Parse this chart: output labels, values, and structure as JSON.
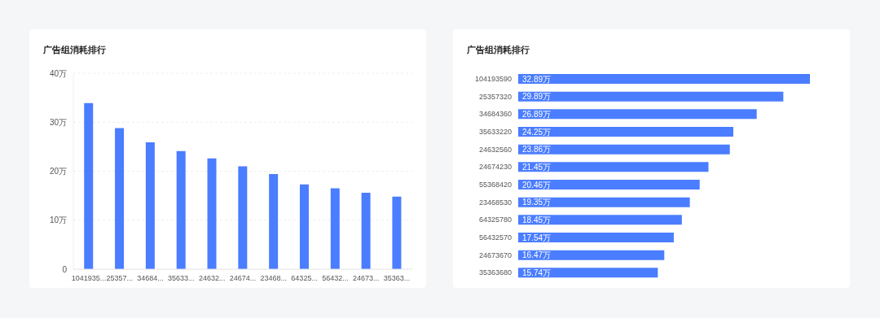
{
  "chart_data": [
    {
      "type": "bar",
      "title": "广告组消耗排行",
      "categories": [
        "1041935...",
        "25357...",
        "34684...",
        "35633...",
        "24632...",
        "24674...",
        "23468...",
        "64325...",
        "56432...",
        "24673...",
        "35363..."
      ],
      "values": [
        33.9,
        28.8,
        25.9,
        24.1,
        22.6,
        21.0,
        19.4,
        17.3,
        16.5,
        15.6,
        14.8
      ],
      "color": "#4a7dff",
      "ylim": [
        0,
        40
      ],
      "yticks": [
        0,
        {
          "value": 10,
          "label": "10万"
        },
        {
          "value": 20,
          "label": "20万"
        },
        {
          "value": 30,
          "label": "30万"
        },
        {
          "value": 40,
          "label": "40万"
        }
      ],
      "grid": "y"
    },
    {
      "type": "bar",
      "orientation": "horizontal",
      "title": "广告组消耗排行",
      "categories": [
        "104193590",
        "25357320",
        "34684360",
        "35633220",
        "24632560",
        "24674230",
        "55368420",
        "23468530",
        "64325780",
        "56432570",
        "24673670",
        "35363680"
      ],
      "values": [
        32.89,
        29.89,
        26.89,
        24.25,
        23.86,
        21.45,
        20.46,
        19.35,
        18.45,
        17.54,
        16.47,
        15.74
      ],
      "value_labels": [
        "32.89万",
        "29.89万",
        "26.89万",
        "24.25万",
        "23.86万",
        "21.45万",
        "20.46万",
        "19.35万",
        "18.45万",
        "17.54万",
        "16.47万",
        "15.74万"
      ],
      "color": "#4a7dff"
    }
  ]
}
